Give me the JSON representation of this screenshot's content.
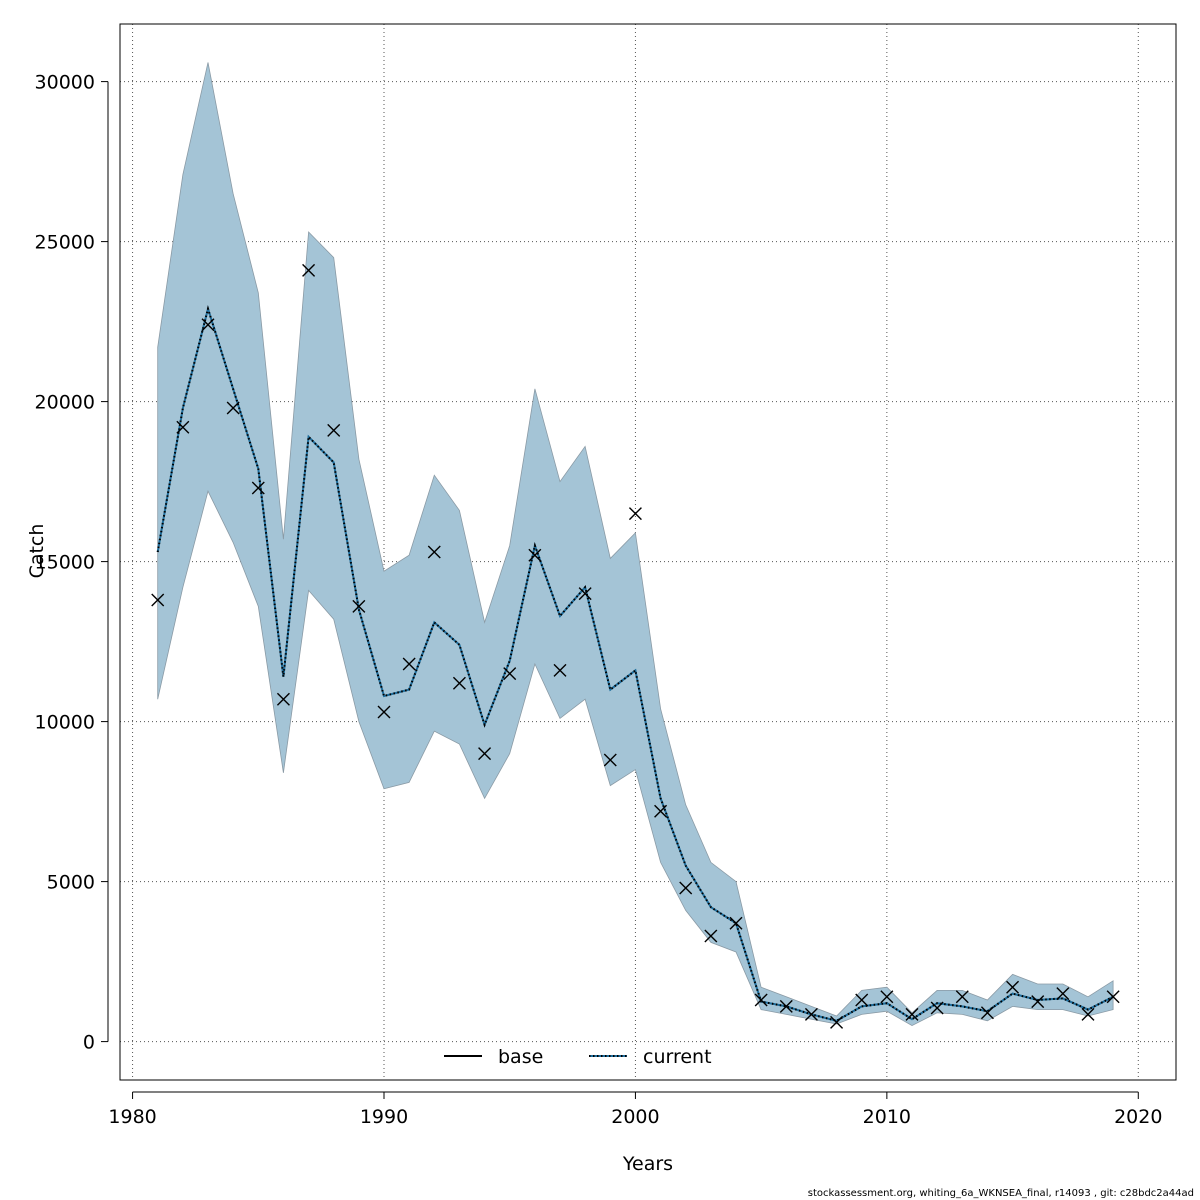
{
  "chart_data": {
    "type": "line",
    "title": "",
    "xlabel": "Years",
    "ylabel": "Catch",
    "xlim": [
      1979.5,
      2021.5
    ],
    "ylim": [
      -1200,
      31800
    ],
    "x_ticks": [
      1980,
      1990,
      2000,
      2010,
      2020
    ],
    "y_ticks": [
      0,
      5000,
      10000,
      15000,
      20000,
      25000,
      30000
    ],
    "grid": true,
    "legend_position": "bottom-center",
    "legend": [
      {
        "name": "base",
        "style": "solid",
        "color": "#000000"
      },
      {
        "name": "current",
        "style": "dotted",
        "color": "#000000",
        "underlay_color": "#1f6f9e"
      }
    ],
    "band_color": "#a4c4d6",
    "band_edge_color": "#8a9aa5",
    "x": [
      1981,
      1982,
      1983,
      1984,
      1985,
      1986,
      1987,
      1988,
      1989,
      1990,
      1991,
      1992,
      1993,
      1994,
      1995,
      1996,
      1997,
      1998,
      1999,
      2000,
      2001,
      2002,
      2003,
      2004,
      2005,
      2006,
      2007,
      2008,
      2009,
      2010,
      2011,
      2012,
      2013,
      2014,
      2015,
      2016,
      2017,
      2018,
      2019
    ],
    "band_upper": [
      21700,
      27100,
      30600,
      26500,
      23400,
      15700,
      25300,
      24500,
      18200,
      14700,
      15200,
      17700,
      16600,
      13100,
      15500,
      20400,
      17500,
      18600,
      15100,
      15900,
      10400,
      7400,
      5600,
      5000,
      1700,
      1400,
      1100,
      800,
      1600,
      1700,
      900,
      1600,
      1600,
      1300,
      2100,
      1800,
      1800,
      1400,
      1900
    ],
    "band_lower": [
      10700,
      14200,
      17200,
      15600,
      13600,
      8400,
      14100,
      13200,
      10000,
      7900,
      8100,
      9700,
      9300,
      7600,
      9000,
      11800,
      10100,
      10700,
      8000,
      8500,
      5600,
      4100,
      3100,
      2800,
      1000,
      850,
      700,
      550,
      850,
      950,
      500,
      900,
      850,
      650,
      1100,
      1000,
      1000,
      800,
      1000
    ],
    "series": [
      {
        "name": "base",
        "values": [
          15300,
          19800,
          22900,
          20400,
          17900,
          11400,
          18900,
          18100,
          13500,
          10800,
          11000,
          13100,
          12400,
          9900,
          11900,
          15500,
          13300,
          14200,
          11000,
          11600,
          7600,
          5500,
          4200,
          3700,
          1250,
          1100,
          850,
          650,
          1100,
          1200,
          700,
          1200,
          1100,
          950,
          1500,
          1300,
          1350,
          1000,
          1400
        ]
      },
      {
        "name": "current",
        "values": [
          15300,
          19800,
          22900,
          20400,
          17900,
          11400,
          18900,
          18100,
          13500,
          10800,
          11000,
          13100,
          12400,
          9900,
          11900,
          15500,
          13300,
          14200,
          11000,
          11600,
          7600,
          5500,
          4200,
          3700,
          1250,
          1100,
          850,
          650,
          1100,
          1200,
          700,
          1200,
          1100,
          950,
          1500,
          1300,
          1350,
          1000,
          1400
        ]
      }
    ],
    "observed": {
      "marker": "x",
      "values": [
        13800,
        19200,
        22400,
        19800,
        17300,
        10700,
        24100,
        19100,
        13600,
        10300,
        11800,
        15300,
        11200,
        9000,
        11500,
        15200,
        11600,
        14000,
        8800,
        16500,
        7200,
        4800,
        3300,
        3700,
        1300,
        1100,
        850,
        600,
        1300,
        1400,
        850,
        1050,
        1400,
        900,
        1700,
        1250,
        1500,
        850,
        1400
      ]
    }
  },
  "footer": "stockassessment.org, whiting_6a_WKNSEA_final, r14093 , git: c28bdc2a44ad"
}
